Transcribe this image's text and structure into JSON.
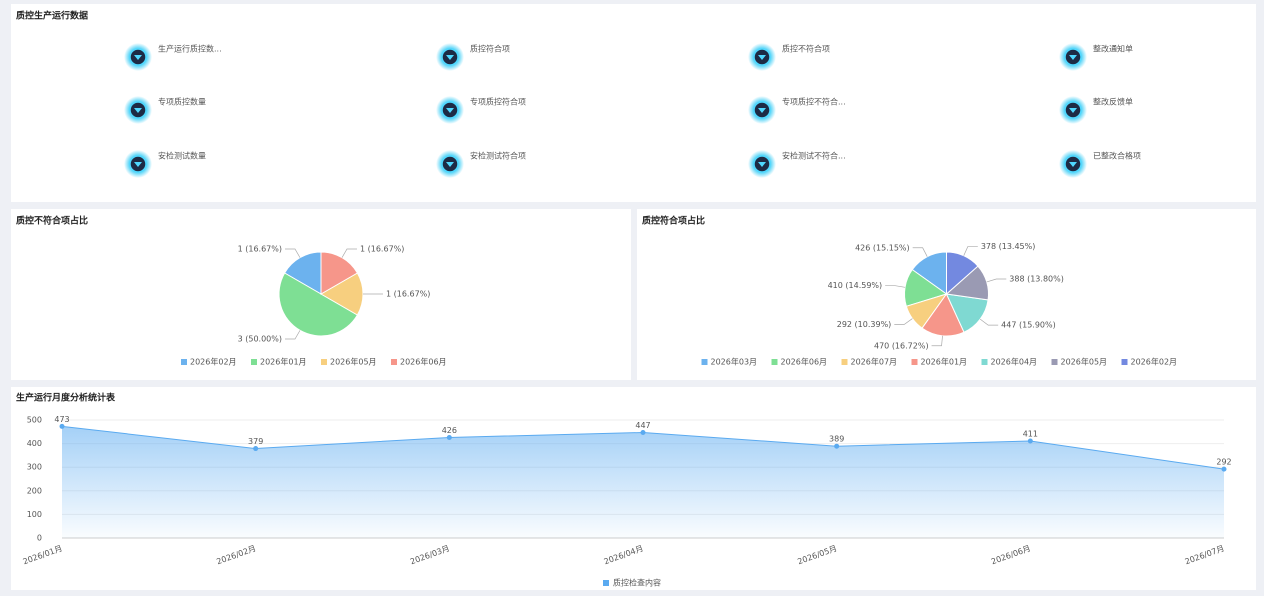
{
  "header": {
    "title": "质控生产运行数据"
  },
  "stats": [
    {
      "label": "生产运行质控数..."
    },
    {
      "label": "质控符合项"
    },
    {
      "label": "质控不符合项"
    },
    {
      "label": "整改通知单"
    },
    {
      "label": "专项质控数量"
    },
    {
      "label": "专项质控符合项"
    },
    {
      "label": "专项质控不符合..."
    },
    {
      "label": "整改反馈单"
    },
    {
      "label": "安检测试数量"
    },
    {
      "label": "安检测试符合项"
    },
    {
      "label": "安检测试不符合..."
    },
    {
      "label": "已整改合格项"
    }
  ],
  "chart_data": [
    {
      "type": "pie",
      "title": "质控不符合项占比",
      "direction": "counterclockwise",
      "categories": [
        "2026年02月",
        "2026年01月",
        "2026年05月",
        "2026年06月"
      ],
      "values": [
        1,
        3,
        1,
        1
      ],
      "value_labels": [
        "1 (16.67%)",
        "3 (50.00%)",
        "1 (16.67%)",
        "1 (16.67%)"
      ],
      "colors": [
        "#6cb2ee",
        "#7edf94",
        "#f7cf7f",
        "#f6968a"
      ]
    },
    {
      "type": "pie",
      "title": "质控符合项占比",
      "direction": "counterclockwise",
      "categories": [
        "2026年03月",
        "2026年06月",
        "2026年07月",
        "2026年01月",
        "2026年04月",
        "2026年05月",
        "2026年02月"
      ],
      "values": [
        426,
        410,
        292,
        470,
        447,
        388,
        378
      ],
      "value_labels": [
        "426 (15.15%)",
        "410 (14.59%)",
        "292 (10.39%)",
        "470 (16.72%)",
        "447 (15.90%)",
        "388 (13.80%)",
        "378 (13.45%)"
      ],
      "colors": [
        "#6cb2ee",
        "#7edf94",
        "#f7cf7f",
        "#f6968a",
        "#7fd9d2",
        "#9a9ab3",
        "#7389e0"
      ]
    },
    {
      "type": "line",
      "title": "生产运行月度分析统计表",
      "categories": [
        "2026/01月",
        "2026/02月",
        "2026/03月",
        "2026/04月",
        "2026/05月",
        "2026/06月",
        "2026/07月"
      ],
      "series": [
        {
          "name": "质控检查内容",
          "color": "#5aaaf0",
          "values": [
            473,
            379,
            426,
            447,
            389,
            411,
            292
          ]
        }
      ],
      "ylim": [
        0,
        500
      ],
      "yticks": [
        0,
        100,
        200,
        300,
        400,
        500
      ],
      "grid": true,
      "area": true
    }
  ]
}
